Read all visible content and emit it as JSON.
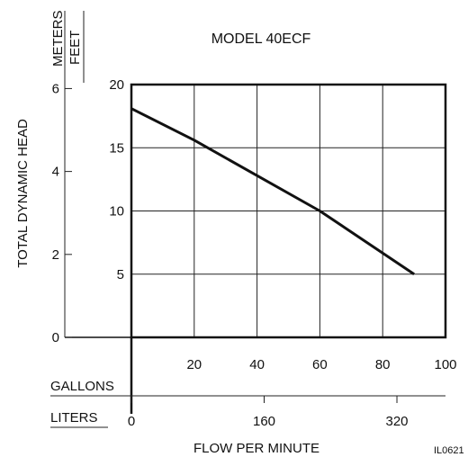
{
  "chart_data": {
    "type": "line",
    "title": "MODEL 40ECF",
    "xlabel": "FLOW PER MINUTE",
    "ylabel": "TOTAL DYNAMIC HEAD",
    "y_units": {
      "meters": "METERS",
      "feet": "FEET"
    },
    "x_units": {
      "gallons": "GALLONS",
      "liters": "LITERS"
    },
    "xlim": [
      0,
      100
    ],
    "ylim": [
      0,
      20
    ],
    "grid": true,
    "x_ticks": [
      0,
      20,
      40,
      60,
      80,
      100
    ],
    "x_tick_labels": [
      "20",
      "40",
      "60",
      "80",
      "100"
    ],
    "y_ticks": [
      0,
      5,
      10,
      15,
      20
    ],
    "y_tick_labels": [
      "5",
      "10",
      "15",
      "20"
    ],
    "meter_ticks": [
      0,
      2,
      4,
      6
    ],
    "meter_tick_labels": [
      "0",
      "2",
      "4",
      "6"
    ],
    "liter_ticks": [
      0,
      160,
      320
    ],
    "liter_tick_labels": [
      "0",
      "160",
      "320"
    ],
    "series": [
      {
        "x": [
          0,
          20,
          40,
          60,
          90
        ],
        "y": [
          18.1,
          15.6,
          12.8,
          10,
          5
        ]
      }
    ],
    "figure_id": "IL0621"
  }
}
